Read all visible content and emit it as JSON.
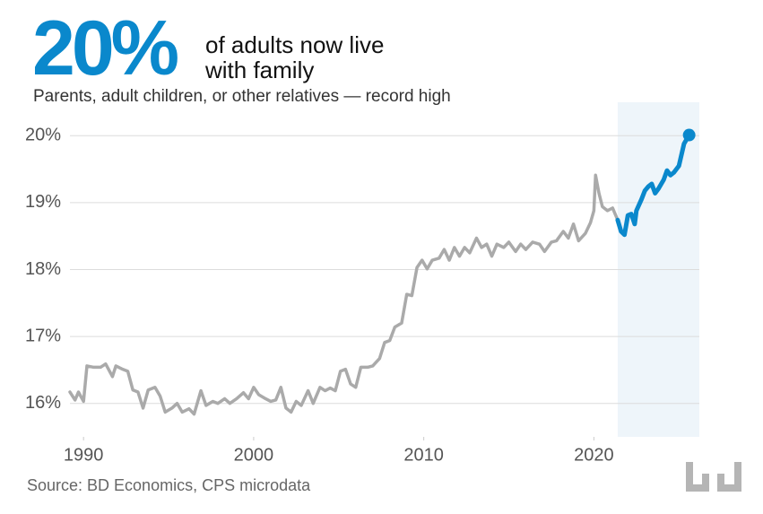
{
  "chart_data": {
    "type": "line",
    "headline_stat": "20%",
    "title": "of adults now live with family",
    "subtitle": "Parents, adult children, or other relatives — record high",
    "source": "Source: BD Economics, CPS microdata",
    "xlim": [
      1989.2,
      2026.2
    ],
    "xticks": [
      1990,
      2000,
      2010,
      2020
    ],
    "ylim": [
      15.5,
      20.5
    ],
    "yticks": [
      {
        "value": 16,
        "label": "16%"
      },
      {
        "value": 17,
        "label": "17%"
      },
      {
        "value": 18,
        "label": "18%"
      },
      {
        "value": 19,
        "label": "19%"
      },
      {
        "value": 20,
        "label": "20%"
      }
    ],
    "grid": true,
    "highlight_color": "#eef5fa",
    "series": [
      {
        "color": "#aaaaaa",
        "x": [
          1989.2,
          1989.5,
          1989.7,
          1990.0,
          1990.2,
          1990.6,
          1991.0,
          1991.3,
          1991.7,
          1991.9,
          1992.3,
          1992.6,
          1992.9,
          1993.2,
          1993.5,
          1993.8,
          1994.2,
          1994.5,
          1994.8,
          1995.2,
          1995.5,
          1995.8,
          1996.2,
          1996.5,
          1996.9,
          1997.2,
          1997.6,
          1997.9,
          1998.3,
          1998.6,
          1999.0,
          1999.4,
          1999.7,
          2000.0,
          2000.3,
          2000.7,
          2001.0,
          2001.3,
          2001.6,
          2001.9,
          2002.2,
          2002.5,
          2002.8,
          2003.2,
          2003.5,
          2003.9,
          2004.2,
          2004.5,
          2004.8,
          2005.1,
          2005.4,
          2005.7,
          2006.0,
          2006.3,
          2006.7,
          2007.0,
          2007.4,
          2007.7,
          2008.0,
          2008.3,
          2008.7,
          2009.0,
          2009.3,
          2009.6,
          2009.9,
          2010.2,
          2010.5,
          2010.9,
          2011.2,
          2011.5,
          2011.8,
          2012.1,
          2012.4,
          2012.7,
          2013.1,
          2013.4,
          2013.7,
          2014.0,
          2014.3,
          2014.7,
          2015.0,
          2015.4,
          2015.7,
          2016.0,
          2016.4,
          2016.8,
          2017.1,
          2017.5,
          2017.8,
          2018.2,
          2018.5,
          2018.8,
          2019.1,
          2019.5,
          2019.8,
          2020.0,
          2020.1,
          2020.3,
          2020.5,
          2020.8,
          2021.1,
          2021.4
        ],
        "values": [
          16.17,
          16.05,
          16.17,
          16.03,
          16.56,
          16.54,
          16.54,
          16.59,
          16.4,
          16.56,
          16.51,
          16.48,
          16.2,
          16.17,
          15.93,
          16.2,
          16.24,
          16.11,
          15.87,
          15.93,
          16.0,
          15.87,
          15.92,
          15.84,
          16.19,
          15.97,
          16.03,
          16.0,
          16.07,
          16.0,
          16.07,
          16.16,
          16.07,
          16.24,
          16.13,
          16.07,
          16.03,
          16.05,
          16.24,
          15.93,
          15.87,
          16.03,
          15.97,
          16.19,
          16.0,
          16.24,
          16.19,
          16.23,
          16.19,
          16.48,
          16.51,
          16.29,
          16.24,
          16.54,
          16.54,
          16.56,
          16.67,
          16.91,
          16.94,
          17.14,
          17.2,
          17.63,
          17.61,
          18.03,
          18.14,
          18.01,
          18.14,
          18.17,
          18.3,
          18.14,
          18.33,
          18.2,
          18.33,
          18.25,
          18.47,
          18.33,
          18.38,
          18.2,
          18.38,
          18.33,
          18.41,
          18.27,
          18.38,
          18.3,
          18.41,
          18.38,
          18.27,
          18.41,
          18.43,
          18.57,
          18.47,
          18.68,
          18.43,
          18.54,
          18.7,
          18.88,
          19.41,
          19.14,
          18.94,
          18.88,
          18.92,
          18.74
        ]
      },
      {
        "color": "#0a88cc",
        "highlight": true,
        "x": [
          2021.4,
          2021.6,
          2021.8,
          2022.0,
          2022.2,
          2022.4,
          2022.5,
          2022.8,
          2023.0,
          2023.2,
          2023.4,
          2023.6,
          2023.8,
          2024.1,
          2024.3,
          2024.5,
          2024.7,
          2025.0,
          2025.3,
          2025.6
        ],
        "values": [
          18.74,
          18.57,
          18.52,
          18.81,
          18.83,
          18.68,
          18.88,
          19.05,
          19.18,
          19.24,
          19.28,
          19.14,
          19.21,
          19.34,
          19.48,
          19.41,
          19.45,
          19.55,
          19.88,
          20.01
        ]
      }
    ]
  }
}
